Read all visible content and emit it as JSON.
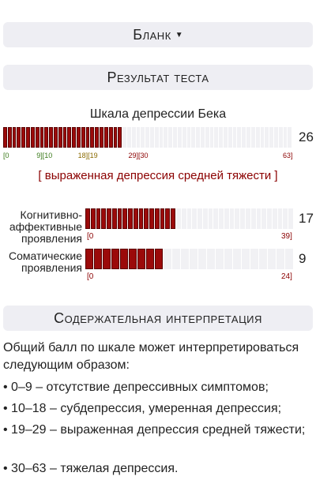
{
  "blank_button": {
    "label": "Бланк"
  },
  "result_header": {
    "label": "Результат теста"
  },
  "main_scale": {
    "title": "Шкала депрессии Бека",
    "score": 26,
    "max": 63,
    "ticks": [
      {
        "text": "[0",
        "color": "#3a7a1a"
      },
      {
        "text": "9][10",
        "color": "#3a7a1a"
      },
      {
        "text": "18][19",
        "color": "#8a6a00"
      },
      {
        "text": "29][30",
        "color": "#8b0000"
      },
      {
        "text": "63]",
        "color": "#8b0000"
      }
    ],
    "verdict": "[ выраженная депрессия средней тяжести ]"
  },
  "subscales": [
    {
      "label_lines": [
        "Когнитивно-",
        "аффективные",
        "проявления"
      ],
      "score": 17,
      "max": 39,
      "min_label": "[0",
      "max_label": "39]"
    },
    {
      "label_lines": [
        "Соматические",
        "проявления"
      ],
      "score": 9,
      "max": 24,
      "min_label": "[0",
      "max_label": "24]"
    }
  ],
  "interp_header": {
    "label": "Содержательная интерпретация"
  },
  "interpretation": {
    "intro": "Общий балл по шкале может интерпретироваться следующим образом:",
    "items": [
      "• 0–9 – отсутствие депрессивных симптомов;",
      "• 10–18 – субдепрессия, умеренная депрессия;",
      "• 19–29 – выраженная депрессия средней тяжести;",
      "• 30–63 – тяжелая депрессия."
    ]
  },
  "colors": {
    "bar_fill": "#9b0a0a",
    "bar_empty": "#f1f1f4",
    "panel": "#eeeef3",
    "verdict": "#8b0000"
  }
}
